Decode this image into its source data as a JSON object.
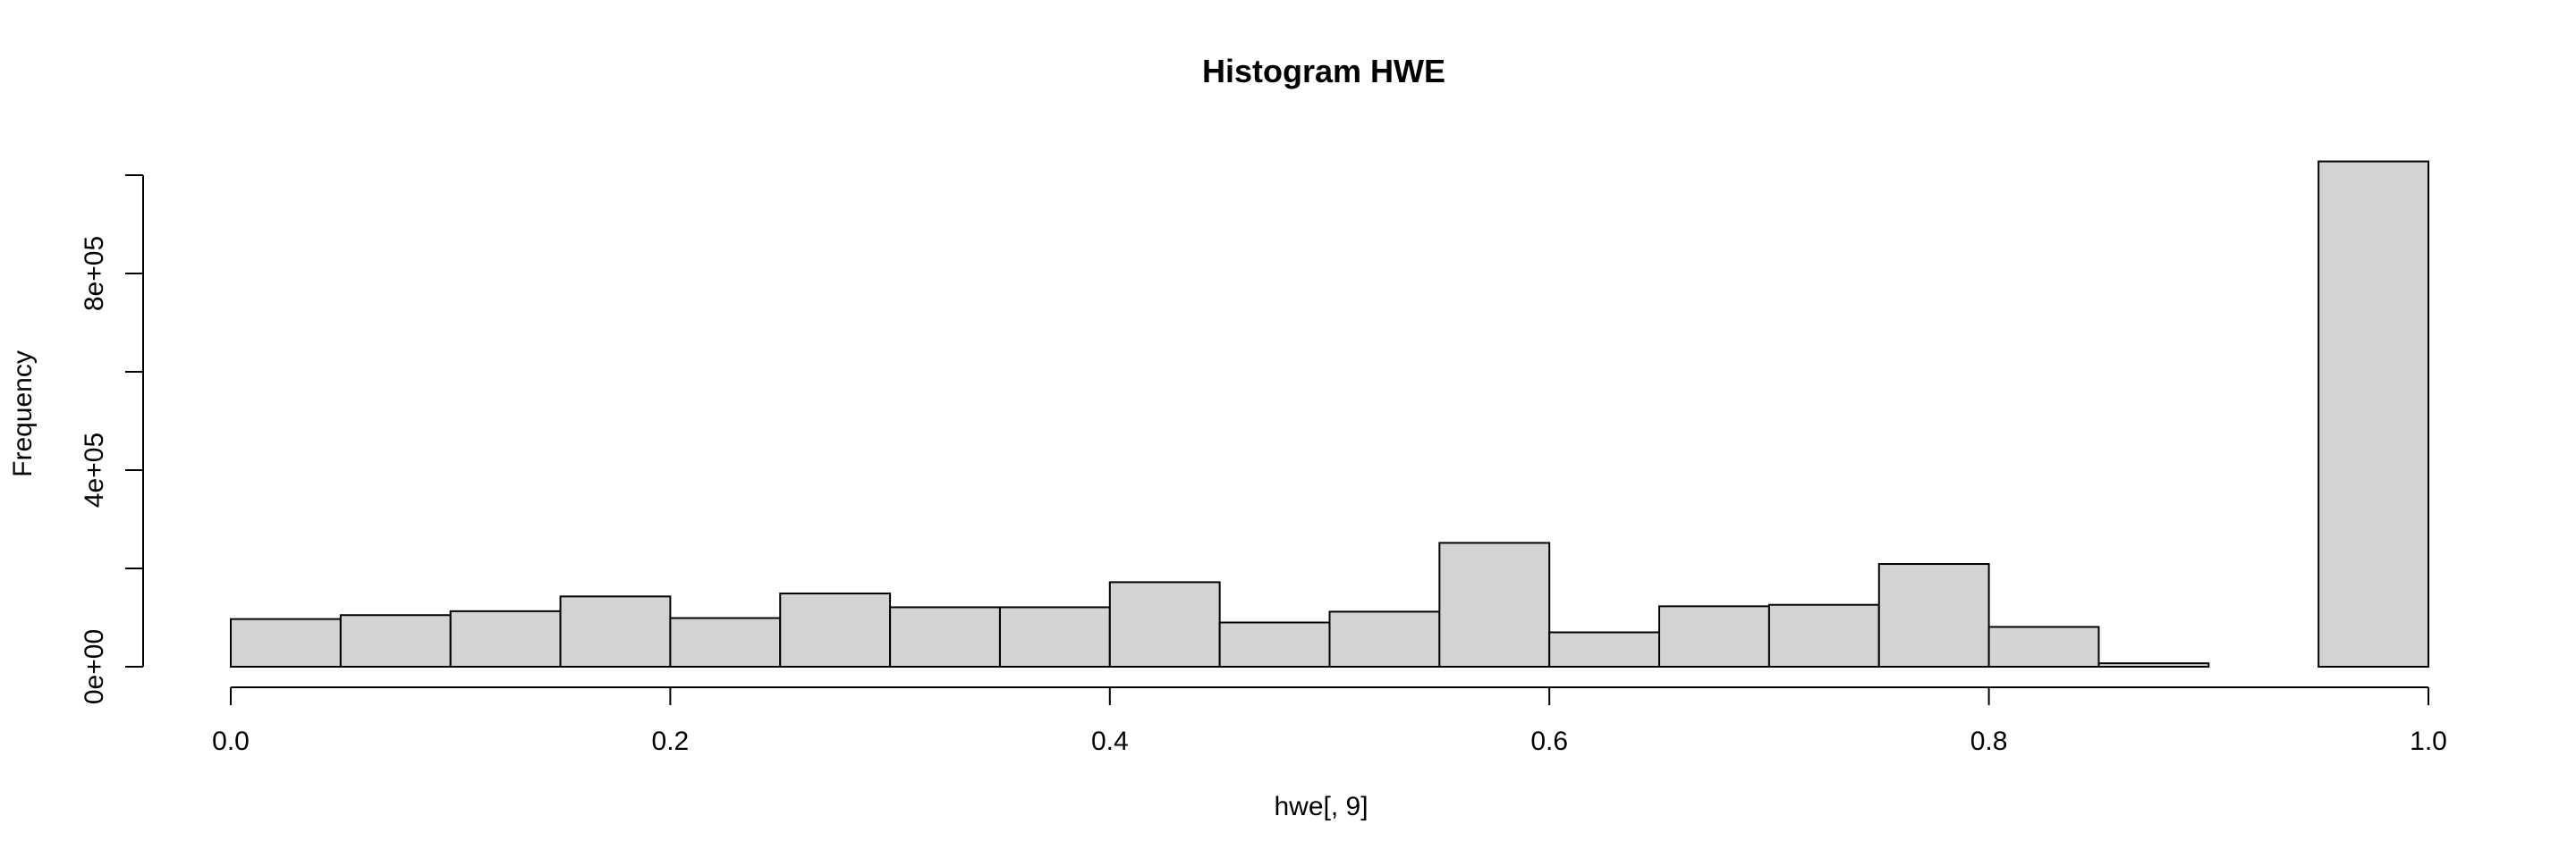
{
  "chart_data": {
    "type": "bar",
    "title": "Histogram HWE",
    "xlabel": "hwe[, 9]",
    "ylabel": "Frequency",
    "xlim": [
      0,
      1
    ],
    "ylim": [
      0,
      1000000
    ],
    "bin_edges": [
      0.0,
      0.05,
      0.1,
      0.15,
      0.2,
      0.25,
      0.3,
      0.35,
      0.4,
      0.45,
      0.5,
      0.55,
      0.6,
      0.65,
      0.7,
      0.75,
      0.8,
      0.85,
      0.9,
      0.95,
      1.0
    ],
    "values": [
      97000,
      105000,
      113000,
      143000,
      99000,
      149000,
      121000,
      121000,
      172000,
      90000,
      112000,
      252000,
      70000,
      123000,
      126000,
      209000,
      81000,
      7000,
      0,
      1028000
    ],
    "x_ticks": [
      0.0,
      0.2,
      0.4,
      0.6,
      0.8,
      1.0
    ],
    "x_tick_labels": [
      "0.0",
      "0.2",
      "0.4",
      "0.6",
      "0.8",
      "1.0"
    ],
    "y_ticks": [
      0,
      200000,
      400000,
      600000,
      800000,
      1000000
    ],
    "y_tick_labels": [
      "0e+00",
      "",
      "4e+05",
      "",
      "8e+05",
      ""
    ],
    "grid": false,
    "legend": "none",
    "colors": {
      "bar_fill": "#d3d3d3",
      "bar_stroke": "#000000"
    }
  }
}
